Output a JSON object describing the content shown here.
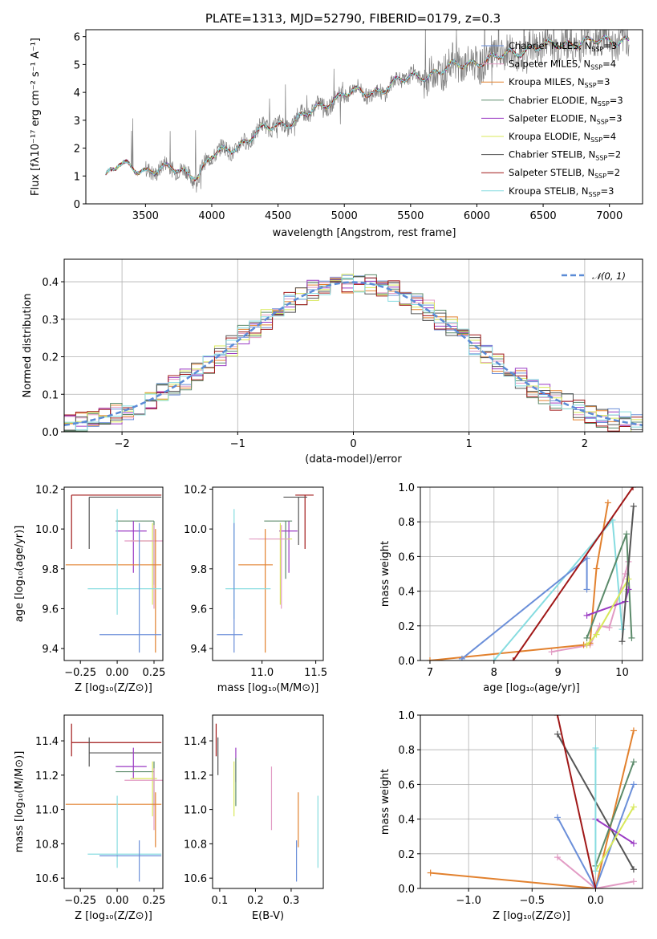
{
  "chart_data": [
    {
      "type": "line",
      "title": "PLATE=1313, MJD=52790, FIBERID=0179, z=0.3",
      "xlabel": "wavelength [Angstrom, rest frame]",
      "ylabel": "Flux [fλ10⁻¹⁷ erg cm⁻² s⁻¹ A⁻¹]",
      "xlim": [
        3050,
        7250
      ],
      "ylim": [
        0,
        6.25
      ],
      "xticks": [
        "3500",
        "4000",
        "4500",
        "5000",
        "5500",
        "6000",
        "6500",
        "7000"
      ],
      "yticks": [
        "0",
        "1",
        "2",
        "3",
        "4",
        "5",
        "6"
      ],
      "grid": false,
      "legend_position": "right",
      "data_color": "#808080",
      "models": [
        {
          "name": "Chabrier MILES, N",
          "n": "3",
          "color": "#6b8fd9"
        },
        {
          "name": "Salpeter MILES, N",
          "n": "4",
          "color": "#e29bc4"
        },
        {
          "name": "Kroupa MILES, N",
          "n": "3",
          "color": "#e2812e"
        },
        {
          "name": "Chabrier ELODIE, N",
          "n": "3",
          "color": "#5b8a6a"
        },
        {
          "name": "Salpeter ELODIE, N",
          "n": "3",
          "color": "#9a3ac3"
        },
        {
          "name": "Kroupa ELODIE, N",
          "n": "4",
          "color": "#d8e85a"
        },
        {
          "name": "Chabrier STELIB, N",
          "n": "2",
          "color": "#555555"
        },
        {
          "name": "Salpeter STELIB, N",
          "n": "2",
          "color": "#a01818"
        },
        {
          "name": "Kroupa STELIB, N",
          "n": "3",
          "color": "#86dce0"
        }
      ],
      "continuum": {
        "x": [
          3200,
          3300,
          3500,
          3700,
          3900,
          4000,
          4200,
          4400,
          4600,
          4800,
          5000,
          5200,
          5400,
          5600,
          5800,
          6000,
          6200,
          6400,
          6600,
          6800,
          7000,
          7150
        ],
        "y": [
          1.0,
          1.4,
          1.2,
          1.25,
          1.05,
          1.7,
          2.1,
          2.7,
          2.95,
          3.4,
          4.0,
          3.95,
          4.4,
          4.6,
          4.9,
          5.1,
          5.3,
          5.6,
          5.7,
          5.8,
          5.85,
          5.9
        ]
      }
    },
    {
      "type": "line",
      "xlabel": "(data-model)/error",
      "ylabel": "Normed distribution",
      "xlim": [
        -2.5,
        2.5
      ],
      "ylim": [
        0,
        0.46
      ],
      "xticks": [
        "−2",
        "−1",
        "0",
        "1",
        "2"
      ],
      "yticks": [
        "0.0",
        "0.1",
        "0.2",
        "0.3",
        "0.4"
      ],
      "grid": true,
      "legend": "𝒩(0, 1)",
      "gauss_color": "#5b8bd6"
    },
    {
      "type": "scatter",
      "xlabel": "Z [log₁₀(Z/Z⊙)]",
      "ylabel": "age  [log₁₀(age/yr)]",
      "xlim": [
        -0.36,
        0.31
      ],
      "ylim": [
        9.34,
        10.21
      ],
      "xticks": [
        "−0.25",
        "0.00",
        "0.25"
      ],
      "yticks": [
        "9.4",
        "9.6",
        "9.8",
        "10.0",
        "10.2"
      ],
      "grid": false,
      "points": [
        {
          "color": "#a01818",
          "x": [
            -0.31,
            0.3
          ],
          "y": [
            9.9,
            10.17
          ],
          "cx": -0.31,
          "cy": 10.17
        },
        {
          "color": "#555555",
          "x": [
            -0.19,
            0.3
          ],
          "y": [
            9.9,
            10.16
          ],
          "cx": -0.19,
          "cy": 10.16
        },
        {
          "color": "#5b8a6a",
          "x": [
            -0.01,
            0.25
          ],
          "y": [
            9.72,
            10.04
          ],
          "cx": 0.25,
          "cy": 10.04
        },
        {
          "color": "#9a3ac3",
          "x": [
            -0.01,
            0.2
          ],
          "y": [
            9.78,
            10.04
          ],
          "cx": 0.11,
          "cy": 9.99
        },
        {
          "color": "#d8e85a",
          "x": [
            0.09,
            0.27
          ],
          "y": [
            9.62,
            10.03
          ],
          "cx": 0.24,
          "cy": 9.94
        },
        {
          "color": "#e29bc4",
          "x": [
            0.05,
            0.31
          ],
          "y": [
            9.6,
            10.02
          ],
          "cx": 0.25,
          "cy": 9.94
        },
        {
          "color": "#e2812e",
          "x": [
            -0.35,
            0.3
          ],
          "y": [
            9.38,
            10.0
          ],
          "cx": 0.26,
          "cy": 9.82
        },
        {
          "color": "#86dce0",
          "x": [
            -0.2,
            0.3
          ],
          "y": [
            9.57,
            10.1
          ],
          "cx": 0.0,
          "cy": 9.7
        },
        {
          "color": "#6b8fd9",
          "x": [
            -0.12,
            0.3
          ],
          "y": [
            9.38,
            10.03
          ],
          "cx": 0.15,
          "cy": 9.47
        }
      ]
    },
    {
      "type": "scatter",
      "xlabel": "mass [log₁₀(M/M⊙)]",
      "xlim": [
        10.54,
        11.57
      ],
      "ylim": [
        9.34,
        10.21
      ],
      "xticks": [
        "11.0",
        "11.5"
      ],
      "yticks": [
        "9.4",
        "9.6",
        "9.8",
        "10.0",
        "10.2"
      ],
      "grid": false,
      "points": [
        {
          "color": "#a01818",
          "x": [
            11.31,
            11.48
          ],
          "y": [
            9.9,
            10.17
          ],
          "cx": 11.4,
          "cy": 10.17
        },
        {
          "color": "#555555",
          "x": [
            11.2,
            11.42
          ],
          "y": [
            9.92,
            10.16
          ],
          "cx": 11.34,
          "cy": 10.16
        },
        {
          "color": "#5b8a6a",
          "x": [
            11.02,
            11.28
          ],
          "y": [
            9.75,
            10.04
          ],
          "cx": 11.22,
          "cy": 10.04
        },
        {
          "color": "#9a3ac3",
          "x": [
            11.16,
            11.33
          ],
          "y": [
            9.78,
            10.04
          ],
          "cx": 11.25,
          "cy": 9.99
        },
        {
          "color": "#d8e85a",
          "x": [
            10.96,
            11.28
          ],
          "y": [
            9.62,
            10.03
          ],
          "cx": 11.17,
          "cy": 9.95
        },
        {
          "color": "#e29bc4",
          "x": [
            10.88,
            11.24
          ],
          "y": [
            9.6,
            10.02
          ],
          "cx": 11.18,
          "cy": 9.95
        },
        {
          "color": "#e2812e",
          "x": [
            10.78,
            11.1
          ],
          "y": [
            9.38,
            10.0
          ],
          "cx": 11.03,
          "cy": 9.82
        },
        {
          "color": "#86dce0",
          "x": [
            10.66,
            11.08
          ],
          "y": [
            9.55,
            10.1
          ],
          "cx": 10.74,
          "cy": 9.7
        },
        {
          "color": "#6b8fd9",
          "x": [
            10.58,
            10.82
          ],
          "y": [
            9.38,
            10.03
          ],
          "cx": 10.74,
          "cy": 9.47
        }
      ]
    },
    {
      "type": "line",
      "xlabel": "age  [log₁₀(age/yr)]",
      "ylabel": "mass weight",
      "xlim": [
        6.85,
        10.32
      ],
      "ylim": [
        0,
        1
      ],
      "xticks": [
        "7",
        "8",
        "9",
        "10"
      ],
      "yticks": [
        "0.0",
        "0.2",
        "0.4",
        "0.6",
        "0.8",
        "1.0"
      ],
      "grid": true,
      "series": [
        {
          "color": "#e29bc4",
          "x": [
            8.9,
            9.5,
            9.65,
            9.8,
            10.05,
            10.1
          ],
          "y": [
            0.05,
            0.09,
            0.2,
            0.19,
            0.5,
            0.57
          ]
        },
        {
          "color": "#e2812e",
          "x": [
            7.0,
            9.4,
            9.5,
            9.6,
            9.78
          ],
          "y": [
            0.0,
            0.09,
            0.1,
            0.53,
            0.91
          ]
        },
        {
          "color": "#86dce0",
          "x": [
            8.0,
            9.85,
            10.0
          ],
          "y": [
            0.0,
            0.81,
            0.18
          ]
        },
        {
          "color": "#6b8fd9",
          "x": [
            7.5,
            9.45,
            9.45
          ],
          "y": [
            0.01,
            0.59,
            0.41
          ]
        },
        {
          "color": "#5b8a6a",
          "x": [
            9.45,
            10.07,
            10.15
          ],
          "y": [
            0.13,
            0.73,
            0.13
          ]
        },
        {
          "color": "#9a3ac3",
          "x": [
            9.45,
            10.05,
            10.1
          ],
          "y": [
            0.26,
            0.34,
            0.41
          ]
        },
        {
          "color": "#d8e85a",
          "x": [
            9.45,
            9.6,
            10.1
          ],
          "y": [
            0.09,
            0.15,
            0.47
          ]
        },
        {
          "color": "#a01818",
          "x": [
            8.3,
            10.17
          ],
          "y": [
            0.0,
            1.0
          ]
        },
        {
          "color": "#555555",
          "x": [
            10.0,
            10.18
          ],
          "y": [
            0.11,
            0.89
          ]
        }
      ]
    },
    {
      "type": "scatter",
      "xlabel": "Z [log₁₀(Z/Z⊙)]",
      "ylabel": "mass [log₁₀(M/M⊙)]",
      "xlim": [
        -0.36,
        0.31
      ],
      "ylim": [
        10.54,
        11.55
      ],
      "xticks": [
        "−0.25",
        "0.00",
        "0.25"
      ],
      "yticks": [
        "10.6",
        "10.8",
        "11.0",
        "11.2",
        "11.4"
      ],
      "grid": false,
      "points": [
        {
          "color": "#a01818",
          "x": [
            -0.31,
            0.3
          ],
          "y": [
            11.31,
            11.5
          ],
          "cx": -0.31,
          "cy": 11.39
        },
        {
          "color": "#555555",
          "x": [
            -0.19,
            0.3
          ],
          "y": [
            11.25,
            11.42
          ],
          "cx": -0.19,
          "cy": 11.33
        },
        {
          "color": "#9a3ac3",
          "x": [
            -0.01,
            0.2
          ],
          "y": [
            11.18,
            11.36
          ],
          "cx": 0.11,
          "cy": 11.25
        },
        {
          "color": "#5b8a6a",
          "x": [
            -0.01,
            0.25
          ],
          "y": [
            11.02,
            11.28
          ],
          "cx": 0.25,
          "cy": 11.22
        },
        {
          "color": "#d8e85a",
          "x": [
            0.09,
            0.27
          ],
          "y": [
            10.96,
            11.28
          ],
          "cx": 0.24,
          "cy": 11.18
        },
        {
          "color": "#e29bc4",
          "x": [
            0.05,
            0.31
          ],
          "y": [
            10.88,
            11.24
          ],
          "cx": 0.25,
          "cy": 11.17
        },
        {
          "color": "#e2812e",
          "x": [
            -0.35,
            0.3
          ],
          "y": [
            10.78,
            11.1
          ],
          "cx": 0.26,
          "cy": 11.03
        },
        {
          "color": "#86dce0",
          "x": [
            -0.2,
            0.3
          ],
          "y": [
            10.66,
            11.08
          ],
          "cx": 0.0,
          "cy": 10.74
        },
        {
          "color": "#6b8fd9",
          "x": [
            -0.12,
            0.3
          ],
          "y": [
            10.58,
            10.82
          ],
          "cx": 0.15,
          "cy": 10.73
        }
      ]
    },
    {
      "type": "scatter",
      "xlabel": "E(B-V)",
      "xlim": [
        0.08,
        0.39
      ],
      "ylim": [
        10.54,
        11.55
      ],
      "xticks": [
        "0.1",
        "0.2",
        "0.3"
      ],
      "yticks": [
        "10.6",
        "10.8",
        "11.0",
        "11.2",
        "11.4"
      ],
      "grid": false,
      "segments": [
        {
          "color": "#a01818",
          "x": 0.09,
          "y": [
            11.31,
            11.5
          ]
        },
        {
          "color": "#555555",
          "x": 0.095,
          "y": [
            11.2,
            11.42
          ]
        },
        {
          "color": "#9a3ac3",
          "x": 0.145,
          "y": [
            11.16,
            11.36
          ]
        },
        {
          "color": "#d8e85a",
          "x": 0.14,
          "y": [
            10.96,
            11.28
          ]
        },
        {
          "color": "#5b8a6a",
          "x": 0.145,
          "y": [
            11.02,
            11.3
          ]
        },
        {
          "color": "#e29bc4",
          "x": 0.245,
          "y": [
            10.88,
            11.25
          ]
        },
        {
          "color": "#e2812e",
          "x": 0.32,
          "y": [
            10.78,
            11.1
          ]
        },
        {
          "color": "#6b8fd9",
          "x": 0.315,
          "y": [
            10.58,
            10.82
          ]
        },
        {
          "color": "#86dce0",
          "x": 0.375,
          "y": [
            10.66,
            11.08
          ]
        }
      ]
    },
    {
      "type": "line",
      "xlabel": "Z [log₁₀(Z/Z⊙)]",
      "ylabel": "mass weight",
      "xlim": [
        -1.38,
        0.37
      ],
      "ylim": [
        0,
        1
      ],
      "xticks": [
        "−1.0",
        "−0.5",
        "0.0"
      ],
      "yticks": [
        "0.0",
        "0.2",
        "0.4",
        "0.6",
        "0.8",
        "1.0"
      ],
      "grid": true,
      "series": [
        {
          "color": "#e2812e",
          "x": [
            -1.3,
            0.0,
            0.3
          ],
          "y": [
            0.09,
            0.0,
            0.91
          ]
        },
        {
          "color": "#e29bc4",
          "x": [
            -0.3,
            0.0,
            0.3
          ],
          "y": [
            0.18,
            0.0,
            0.04
          ]
        },
        {
          "color": "#6b8fd9",
          "x": [
            -0.3,
            0.0,
            0.3
          ],
          "y": [
            0.41,
            0.0,
            0.6
          ]
        },
        {
          "color": "#555555",
          "x": [
            -0.3,
            0.3
          ],
          "y": [
            0.89,
            0.11
          ]
        },
        {
          "color": "#5b8a6a",
          "x": [
            0.0,
            0.3
          ],
          "y": [
            0.13,
            0.73
          ]
        },
        {
          "color": "#9a3ac3",
          "x": [
            0.0,
            0.3
          ],
          "y": [
            0.4,
            0.26
          ]
        },
        {
          "color": "#d8e85a",
          "x": [
            0.0,
            0.3
          ],
          "y": [
            0.1,
            0.47
          ]
        },
        {
          "color": "#86dce0",
          "x": [
            0.0,
            0.0
          ],
          "y": [
            0.1,
            0.81
          ]
        },
        {
          "color": "#a01818",
          "x": [
            -0.3,
            0.0
          ],
          "y": [
            1.0,
            0.0
          ]
        }
      ]
    }
  ]
}
